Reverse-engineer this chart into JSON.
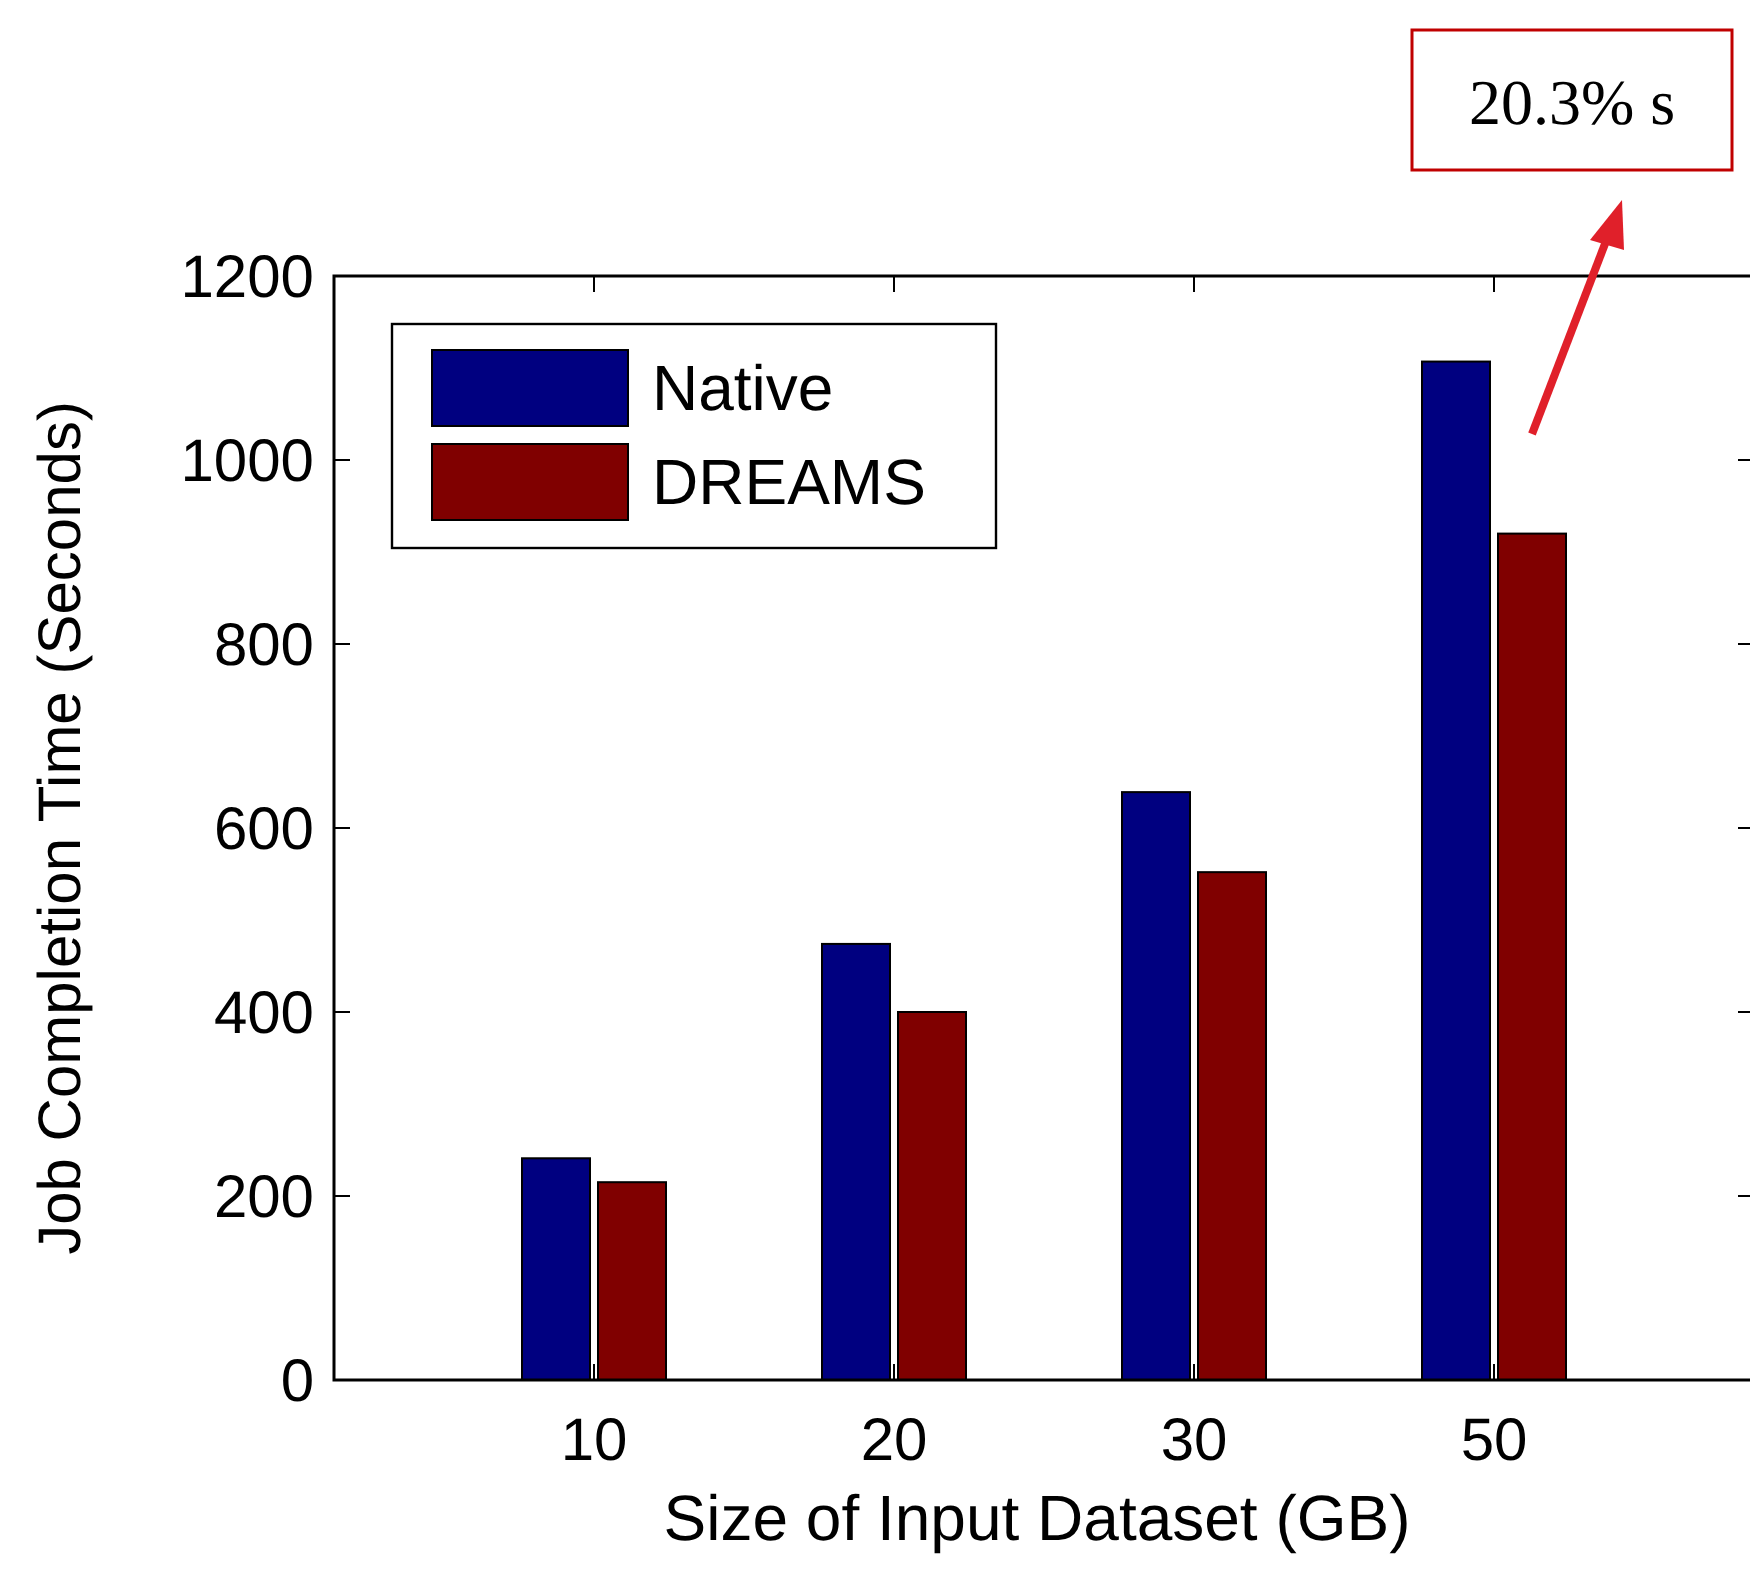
{
  "chart_data": {
    "type": "bar",
    "xlabel": "Size of Input Dataset (GB)",
    "ylabel": "Job Completion Time (Seconds)",
    "categories": [
      "10",
      "20",
      "30",
      "50"
    ],
    "series": [
      {
        "name": "Native",
        "color": "#000080",
        "values": [
          241,
          474,
          639,
          1107
        ]
      },
      {
        "name": "DREAMS",
        "color": "#800000",
        "values": [
          215,
          400,
          552,
          920
        ]
      }
    ],
    "ylim": [
      0,
      1200
    ],
    "yticks": [
      0,
      200,
      400,
      600,
      800,
      1000,
      1200
    ],
    "grid": false,
    "legend": "top left",
    "annotations": [
      "20.3% s"
    ]
  }
}
